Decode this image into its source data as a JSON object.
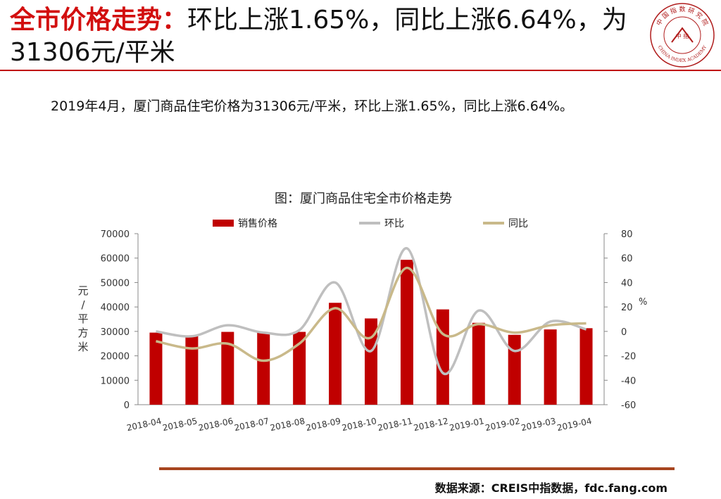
{
  "headline": {
    "lead": "全市价格走势：",
    "rest": "环比上涨1.65%，同比上涨6.64%，为31306元/平米"
  },
  "logo": {
    "top_text": "中 国 指 数 研 究 院",
    "center_text": "中 指",
    "bottom_text": "CHINA INDEX ACADEMY"
  },
  "summary": "2019年4月，厦门商品住宅价格为31306元/平米，环比上涨1.65%，同比上涨6.64%。",
  "source": "数据来源：CREIS中指数据，fdc.fang.com",
  "colors": {
    "accent_red": "#d20f0f",
    "bar": "#c00000",
    "mom_line": "#bfbfbf",
    "yoy_line": "#c9b98a",
    "footer_rule": "#a7451f"
  },
  "chart_data": {
    "type": "bar",
    "title": "图：厦门商品住宅全市价格走势",
    "categories": [
      "2018-04",
      "2018-05",
      "2018-06",
      "2018-07",
      "2018-08",
      "2018-09",
      "2018-10",
      "2018-11",
      "2018-12",
      "2019-01",
      "2019-02",
      "2019-03",
      "2019-04"
    ],
    "series": [
      {
        "name": "销售价格",
        "type": "bar",
        "axis": "left",
        "values": [
          29500,
          28200,
          29800,
          29500,
          29800,
          41700,
          35300,
          59300,
          39000,
          33500,
          28600,
          30800,
          31306
        ]
      },
      {
        "name": "环比",
        "type": "line",
        "axis": "right",
        "smooth": true,
        "values": [
          0,
          -4,
          5,
          -1,
          1,
          40,
          -16,
          68,
          -34,
          17,
          -16,
          8,
          1.65
        ]
      },
      {
        "name": "同比",
        "type": "line",
        "axis": "right",
        "smooth": true,
        "values": [
          -8,
          -14,
          -10,
          -24,
          -10,
          19,
          -5,
          52,
          -2,
          6,
          -1,
          5,
          6.64
        ]
      }
    ],
    "ylabel_left": "元/平方米",
    "ylabel_right": "%",
    "y_left": {
      "min": 0,
      "max": 70000,
      "ticks": [
        0,
        10000,
        20000,
        30000,
        40000,
        50000,
        60000,
        70000
      ]
    },
    "y_right": {
      "min": -60,
      "max": 80,
      "ticks": [
        -60,
        -40,
        -20,
        0,
        20,
        40,
        60,
        80
      ]
    },
    "legend_position": "top",
    "grid": false
  }
}
